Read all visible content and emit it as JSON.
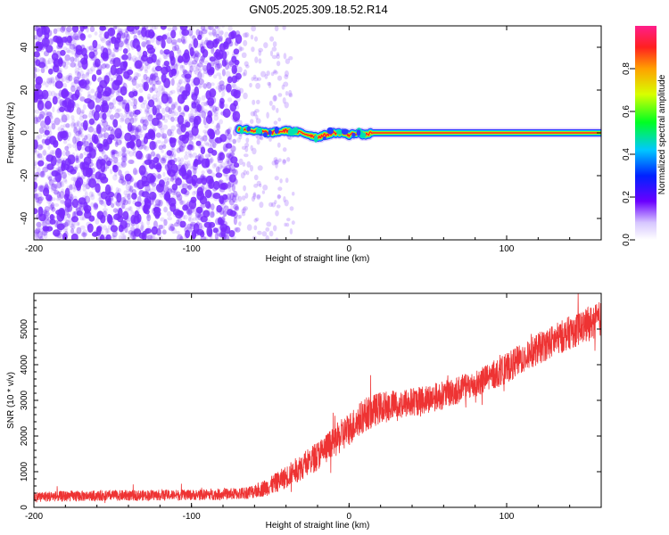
{
  "title": "GN05.2025.309.18.52.R14",
  "colors": {
    "noise": "#7a2cff",
    "line": "#ee3333",
    "axis": "#000000"
  },
  "chart_data": [
    {
      "type": "heatmap",
      "title": "GN05.2025.309.18.52.R14",
      "xlabel": "Height of straight line (km)",
      "ylabel": "Frequency (Hz)",
      "xlim": [
        -200,
        160
      ],
      "ylim": [
        -50,
        50
      ],
      "xticks": [
        -200,
        -100,
        0,
        100
      ],
      "xtick_labels": [
        "-200",
        "-100",
        "0",
        "100"
      ],
      "yticks": [
        -40,
        -20,
        0,
        20,
        40
      ],
      "ytick_labels": [
        "-40",
        "-20",
        "0",
        "20",
        "40"
      ],
      "colorbar": {
        "label": "Normalized spectral amplitude",
        "range": [
          0,
          1
        ],
        "ticks": [
          0,
          0.2,
          0.4,
          0.6,
          0.8
        ],
        "tick_labels": [
          "0.0",
          "0.2",
          "0.4",
          "0.6",
          "0.8"
        ]
      },
      "regions": [
        {
          "name": "dense noise",
          "x_range": [
            -200,
            -70
          ],
          "freq_range": [
            -50,
            50
          ],
          "amplitude": 0.05
        },
        {
          "name": "sparse noise",
          "x_range": [
            -70,
            -35
          ],
          "freq_range": [
            -50,
            50
          ],
          "amplitude": 0.03
        },
        {
          "name": "signal",
          "x_range": [
            -70,
            160
          ],
          "center_freq": 0,
          "amplitude": 0.95
        }
      ],
      "signal_track": {
        "x": [
          -70,
          -60,
          -50,
          -40,
          -30,
          -25,
          -20,
          -15,
          -10,
          -5,
          0,
          5,
          10,
          15,
          50,
          100,
          160
        ],
        "freq": [
          2,
          1,
          0,
          1,
          0,
          -1,
          -2,
          -1,
          0,
          0,
          -1,
          0,
          -1,
          0,
          0,
          0,
          0
        ]
      }
    },
    {
      "type": "line",
      "xlabel": "Height of straight line (km)",
      "ylabel": "SNR (10 * v/v)",
      "xlim": [
        -200,
        160
      ],
      "ylim": [
        0,
        6000
      ],
      "xticks": [
        -200,
        -100,
        0,
        100
      ],
      "xtick_labels": [
        "-200",
        "-100",
        "0",
        "100"
      ],
      "yticks": [
        0,
        1000,
        2000,
        3000,
        4000,
        5000
      ],
      "ytick_labels": [
        "0",
        "1000",
        "2000",
        "3000",
        "4000",
        "5000"
      ],
      "series": [
        {
          "name": "SNR",
          "x": [
            -200,
            -150,
            -100,
            -70,
            -60,
            -50,
            -40,
            -30,
            -20,
            -10,
            0,
            10,
            20,
            40,
            60,
            80,
            100,
            120,
            140,
            160
          ],
          "values": [
            300,
            330,
            350,
            380,
            450,
            600,
            850,
            1150,
            1450,
            1800,
            2200,
            2600,
            2800,
            2950,
            3150,
            3450,
            3900,
            4450,
            4900,
            5300
          ],
          "envelope": [
            150,
            150,
            150,
            170,
            200,
            260,
            320,
            380,
            420,
            460,
            480,
            480,
            450,
            420,
            400,
            400,
            420,
            450,
            470,
            500
          ]
        }
      ]
    }
  ]
}
